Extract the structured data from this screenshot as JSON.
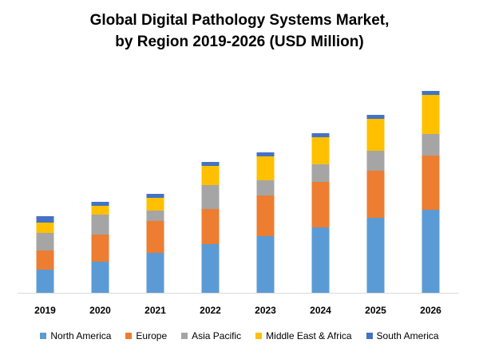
{
  "chart_data": {
    "type": "bar",
    "stacked": true,
    "title": "Global Digital Pathology Systems Market,",
    "subtitle": "by Region 2019-2026 (USD Million)",
    "xlabel": "",
    "ylabel": "",
    "categories": [
      "2019",
      "2020",
      "2021",
      "2022",
      "2023",
      "2024",
      "2025",
      "2026"
    ],
    "ylim": [
      0,
      255
    ],
    "grid": false,
    "legend_position": "bottom",
    "series": [
      {
        "name": "North America",
        "color": "#5B9BD5",
        "values": [
          29,
          39,
          50,
          61,
          71,
          82,
          94,
          104
        ]
      },
      {
        "name": "Europe",
        "color": "#ED7D31",
        "values": [
          24,
          34,
          40,
          44,
          51,
          57,
          59,
          68
        ]
      },
      {
        "name": "Asia Pacific",
        "color": "#A5A5A5",
        "values": [
          22,
          25,
          13,
          30,
          19,
          22,
          25,
          27
        ]
      },
      {
        "name": "Middle East & Africa",
        "color": "#FFC000",
        "values": [
          13,
          11,
          16,
          24,
          30,
          34,
          40,
          49
        ]
      },
      {
        "name": "South America",
        "color": "#4472C4",
        "values": [
          8,
          5,
          5,
          5,
          5,
          5,
          5,
          5
        ]
      }
    ]
  }
}
